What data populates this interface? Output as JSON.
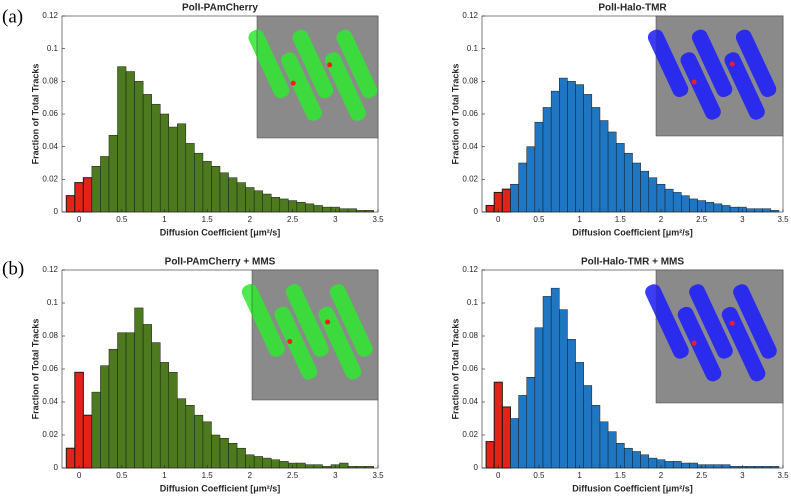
{
  "panel_labels": [
    "(a)",
    "(b)"
  ],
  "chart_data": [
    {
      "type": "histogram",
      "title": "PolI-PAmCherry",
      "x_label": "Diffusion Coefficient [μm²/s]",
      "y_label": "Fraction of Total Tracks",
      "xlim": [
        -0.2,
        3.5
      ],
      "ylim": [
        0,
        0.12
      ],
      "xticks": [
        0,
        0.5,
        1,
        1.5,
        2,
        2.5,
        3,
        3.5
      ],
      "yticks": [
        0,
        0.02,
        0.04,
        0.06,
        0.08,
        0.1,
        0.12
      ],
      "grid": false,
      "series": [
        {
          "color": "#e32219",
          "bins": [
            -0.15,
            -0.05,
            0.05,
            0.15
          ],
          "values": [
            0.01,
            0.018,
            0.021
          ]
        },
        {
          "color": "#4e7a1f",
          "bins": [
            0.15,
            0.25,
            0.35,
            0.45,
            0.55,
            0.65,
            0.75,
            0.85,
            0.95,
            1.05,
            1.15,
            1.25,
            1.35,
            1.45,
            1.55,
            1.65,
            1.75,
            1.85,
            1.95,
            2.05,
            2.15,
            2.25,
            2.35,
            2.45,
            2.55,
            2.65,
            2.75,
            2.85,
            2.95,
            3.05,
            3.15,
            3.25,
            3.35,
            3.45
          ],
          "values": [
            0.028,
            0.034,
            0.047,
            0.089,
            0.086,
            0.08,
            0.072,
            0.066,
            0.06,
            0.052,
            0.054,
            0.042,
            0.036,
            0.031,
            0.028,
            0.024,
            0.021,
            0.018,
            0.015,
            0.013,
            0.011,
            0.009,
            0.008,
            0.007,
            0.006,
            0.005,
            0.004,
            0.003,
            0.003,
            0.002,
            0.002,
            0.001,
            0.001
          ]
        }
      ]
    },
    {
      "type": "histogram",
      "title": "PolI-Halo-TMR",
      "x_label": "Diffusion Coefficient [μm²/s]",
      "y_label": "Fraction of Total Tracks",
      "xlim": [
        -0.2,
        3.5
      ],
      "ylim": [
        0,
        0.12
      ],
      "xticks": [
        0,
        0.5,
        1,
        1.5,
        2,
        2.5,
        3,
        3.5
      ],
      "yticks": [
        0,
        0.02,
        0.04,
        0.06,
        0.08,
        0.1,
        0.12
      ],
      "grid": false,
      "series": [
        {
          "color": "#e32219",
          "bins": [
            -0.15,
            -0.05,
            0.05,
            0.15
          ],
          "values": [
            0.004,
            0.012,
            0.014
          ]
        },
        {
          "color": "#1f77c4",
          "bins": [
            0.15,
            0.25,
            0.35,
            0.45,
            0.55,
            0.65,
            0.75,
            0.85,
            0.95,
            1.05,
            1.15,
            1.25,
            1.35,
            1.45,
            1.55,
            1.65,
            1.75,
            1.85,
            1.95,
            2.05,
            2.15,
            2.25,
            2.35,
            2.45,
            2.55,
            2.65,
            2.75,
            2.85,
            2.95,
            3.05,
            3.15,
            3.25,
            3.35,
            3.45
          ],
          "values": [
            0.017,
            0.03,
            0.04,
            0.055,
            0.064,
            0.074,
            0.082,
            0.08,
            0.078,
            0.072,
            0.064,
            0.056,
            0.049,
            0.042,
            0.036,
            0.03,
            0.025,
            0.021,
            0.017,
            0.014,
            0.012,
            0.01,
            0.008,
            0.007,
            0.006,
            0.005,
            0.004,
            0.003,
            0.003,
            0.002,
            0.002,
            0.002,
            0.001
          ]
        }
      ]
    },
    {
      "type": "histogram",
      "title": "PolI-PAmCherry + MMS",
      "x_label": "Diffusion Coefficient [μm²/s]",
      "y_label": "Fraction of Total Tracks",
      "xlim": [
        -0.2,
        3.5
      ],
      "ylim": [
        0,
        0.12
      ],
      "xticks": [
        0,
        0.5,
        1,
        1.5,
        2,
        2.5,
        3,
        3.5
      ],
      "yticks": [
        0,
        0.02,
        0.04,
        0.06,
        0.08,
        0.1,
        0.12
      ],
      "grid": false,
      "series": [
        {
          "color": "#e32219",
          "bins": [
            -0.15,
            -0.05,
            0.05,
            0.15
          ],
          "values": [
            0.012,
            0.058,
            0.032
          ]
        },
        {
          "color": "#4e7a1f",
          "bins": [
            0.15,
            0.25,
            0.35,
            0.45,
            0.55,
            0.65,
            0.75,
            0.85,
            0.95,
            1.05,
            1.15,
            1.25,
            1.35,
            1.45,
            1.55,
            1.65,
            1.75,
            1.85,
            1.95,
            2.05,
            2.15,
            2.25,
            2.35,
            2.45,
            2.55,
            2.65,
            2.75,
            2.85,
            2.95,
            3.05,
            3.15,
            3.25,
            3.35,
            3.45
          ],
          "values": [
            0.046,
            0.062,
            0.072,
            0.082,
            0.082,
            0.097,
            0.087,
            0.076,
            0.064,
            0.058,
            0.042,
            0.038,
            0.032,
            0.028,
            0.02,
            0.018,
            0.015,
            0.012,
            0.008,
            0.007,
            0.006,
            0.005,
            0.004,
            0.003,
            0.003,
            0.002,
            0.002,
            0.001,
            0.002,
            0.003,
            0.001,
            0.001,
            0.001
          ]
        }
      ]
    },
    {
      "type": "histogram",
      "title": "PolI-Halo-TMR + MMS",
      "x_label": "Diffusion Coefficient [μm²/s]",
      "y_label": "Fraction of Total Tracks",
      "xlim": [
        -0.2,
        3.5
      ],
      "ylim": [
        0,
        0.12
      ],
      "xticks": [
        0,
        0.5,
        1,
        1.5,
        2,
        2.5,
        3,
        3.5
      ],
      "yticks": [
        0,
        0.02,
        0.04,
        0.06,
        0.08,
        0.1,
        0.12
      ],
      "grid": false,
      "series": [
        {
          "color": "#e32219",
          "bins": [
            -0.15,
            -0.05,
            0.05,
            0.15
          ],
          "values": [
            0.016,
            0.052,
            0.037
          ]
        },
        {
          "color": "#1f77c4",
          "bins": [
            0.15,
            0.25,
            0.35,
            0.45,
            0.55,
            0.65,
            0.75,
            0.85,
            0.95,
            1.05,
            1.15,
            1.25,
            1.35,
            1.45,
            1.55,
            1.65,
            1.75,
            1.85,
            1.95,
            2.05,
            2.15,
            2.25,
            2.35,
            2.45,
            2.55,
            2.65,
            2.75,
            2.85,
            2.95,
            3.05,
            3.15,
            3.25,
            3.35,
            3.45
          ],
          "values": [
            0.03,
            0.044,
            0.055,
            0.085,
            0.104,
            0.109,
            0.096,
            0.078,
            0.064,
            0.05,
            0.038,
            0.028,
            0.022,
            0.015,
            0.012,
            0.01,
            0.008,
            0.006,
            0.005,
            0.004,
            0.004,
            0.003,
            0.003,
            0.002,
            0.002,
            0.002,
            0.002,
            0.001,
            0.001,
            0.001,
            0.001,
            0.001,
            0.001
          ]
        }
      ]
    }
  ]
}
